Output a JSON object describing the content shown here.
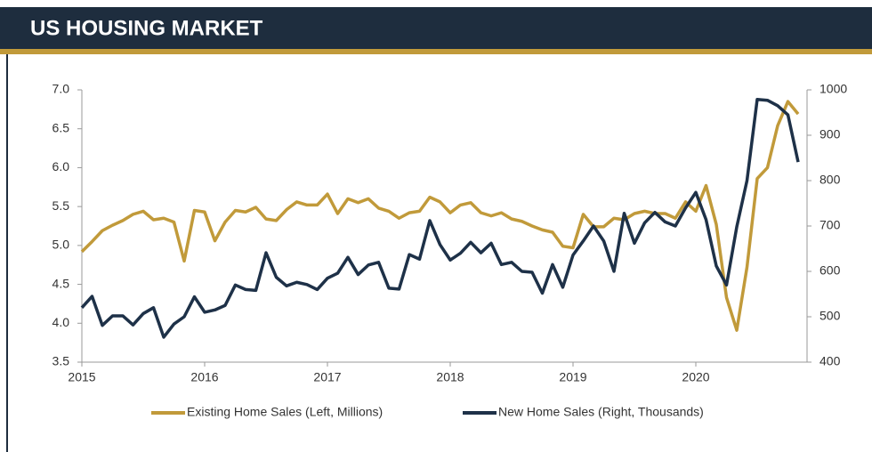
{
  "chart_data": {
    "type": "line",
    "title": "US HOUSING MARKET",
    "categories": [
      "2015",
      null,
      null,
      null,
      null,
      null,
      null,
      null,
      null,
      null,
      null,
      null,
      "2016",
      null,
      null,
      null,
      null,
      null,
      null,
      null,
      null,
      null,
      null,
      null,
      "2017",
      null,
      null,
      null,
      null,
      null,
      null,
      null,
      null,
      null,
      null,
      null,
      "2018",
      null,
      null,
      null,
      null,
      null,
      null,
      null,
      null,
      null,
      null,
      null,
      "2019",
      null,
      null,
      null,
      null,
      null,
      null,
      null,
      null,
      null,
      null,
      null,
      "2020",
      null,
      null,
      null,
      null,
      null,
      null,
      null,
      null,
      null,
      null
    ],
    "series": [
      {
        "name": "Existing Home Sales (Left, Millions)",
        "color": "#c19a3a",
        "values": [
          4.92,
          5.05,
          5.19,
          5.26,
          5.32,
          5.4,
          5.44,
          5.33,
          5.35,
          5.3,
          4.8,
          5.45,
          5.43,
          5.06,
          5.3,
          5.45,
          5.43,
          5.49,
          5.34,
          5.32,
          5.46,
          5.56,
          5.52,
          5.52,
          5.66,
          5.41,
          5.6,
          5.55,
          5.6,
          5.48,
          5.44,
          5.35,
          5.42,
          5.44,
          5.62,
          5.56,
          5.42,
          5.52,
          5.55,
          5.42,
          5.38,
          5.42,
          5.34,
          5.31,
          5.25,
          5.2,
          5.17,
          4.99,
          4.97,
          5.4,
          5.24,
          5.24,
          5.35,
          5.33,
          5.41,
          5.44,
          5.41,
          5.41,
          5.35,
          5.56,
          5.44,
          5.77,
          5.27,
          4.33,
          3.91,
          4.72,
          5.86,
          6.0,
          6.54,
          6.85,
          6.69
        ]
      },
      {
        "name": "New Home Sales (Right, Thousands)",
        "color": "#1e3148",
        "axis": "y2",
        "values": [
          520,
          545,
          481,
          502,
          502,
          482,
          507,
          520,
          455,
          484,
          500,
          544,
          510,
          515,
          525,
          570,
          560,
          558,
          641,
          587,
          568,
          576,
          571,
          560,
          585,
          596,
          631,
          593,
          614,
          620,
          563,
          561,
          637,
          627,
          712,
          659,
          625,
          640,
          664,
          641,
          662,
          615,
          620,
          600,
          598,
          552,
          615,
          565,
          636,
          667,
          700,
          667,
          600,
          728,
          662,
          707,
          730,
          709,
          700,
          740,
          774,
          714,
          612,
          570,
          698,
          800,
          979,
          977,
          965,
          945,
          841
        ]
      }
    ],
    "ylim": [
      3.5,
      7.0
    ],
    "yticks": [
      3.5,
      {
        "value": 4,
        "label": "4.0"
      },
      4.5,
      {
        "value": 5,
        "label": "5.0"
      },
      5.5,
      {
        "value": 6,
        "label": "6.0"
      },
      6.5,
      {
        "value": 7,
        "label": "7.0"
      }
    ],
    "y2lim": [
      400,
      1000
    ],
    "y2ticks": [
      400,
      500,
      600,
      700,
      800,
      900,
      1000
    ]
  }
}
